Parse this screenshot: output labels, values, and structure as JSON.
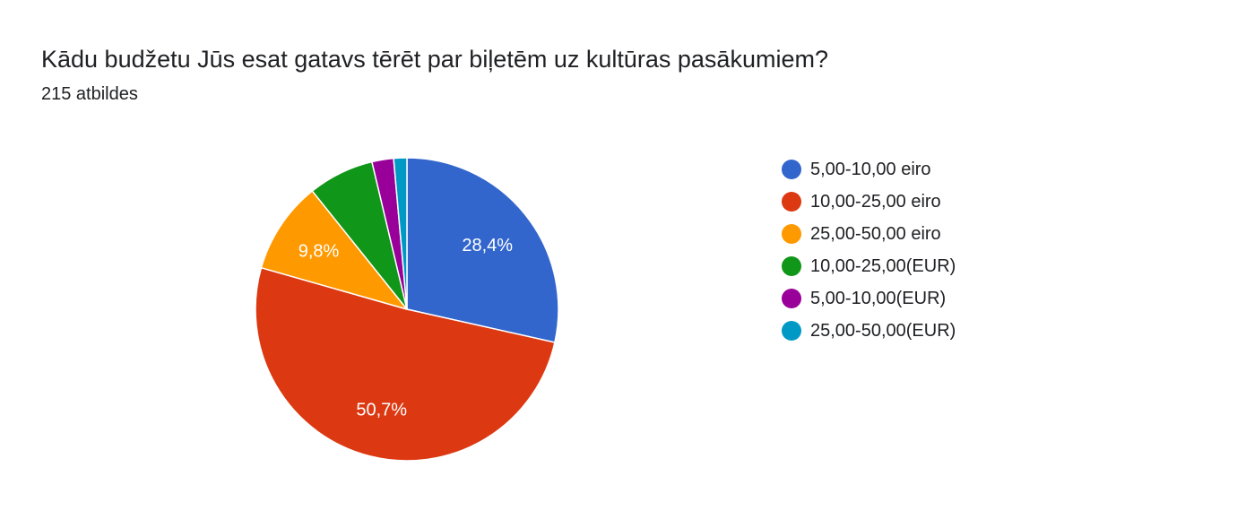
{
  "form": {
    "question": "Kādu budžetu Jūs esat gatavs tērēt par biļetēm uz kultūras pasākumiem?",
    "response_count": "215 atbildes"
  },
  "chart_data": {
    "type": "pie",
    "title": "Kādu budžetu Jūs esat gatavs tērēt par biļetēm uz kultūras pasākumiem?",
    "legend_position": "right",
    "start_angle_deg": 90,
    "direction": "clockwise",
    "slices": [
      {
        "label": "5,00-10,00 eiro",
        "percent": 28.4,
        "display": "28,4%",
        "color": "#3366cc"
      },
      {
        "label": "10,00-25,00 eiro",
        "percent": 50.7,
        "display": "50,7%",
        "color": "#dc3912"
      },
      {
        "label": "25,00-50,00 eiro",
        "percent": 9.8,
        "display": "9,8%",
        "color": "#ff9900"
      },
      {
        "label": "10,00-25,00(EUR)",
        "percent": 7.0,
        "display": "",
        "color": "#109618"
      },
      {
        "label": "5,00-10,00(EUR)",
        "percent": 2.3,
        "display": "",
        "color": "#990099"
      },
      {
        "label": "25,00-50,00(EUR)",
        "percent": 1.4,
        "display": "",
        "color": "#0099c6"
      }
    ]
  }
}
